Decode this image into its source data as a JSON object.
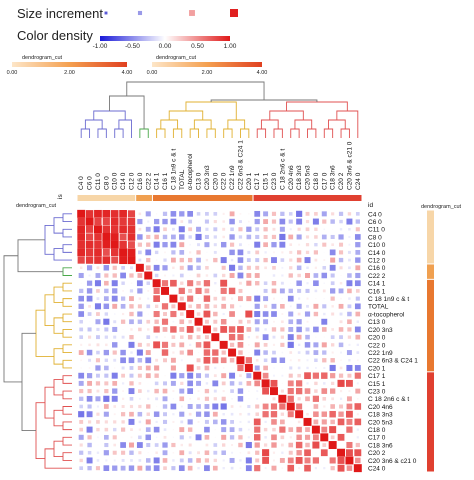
{
  "legend": {
    "size_title": "Size increment",
    "color_title": "Color density",
    "color_ticks": [
      "-1.00",
      "-0.50",
      "0.00",
      "0.50",
      "1.00"
    ],
    "size_levels": [
      0.15,
      0.35,
      0.65,
      1.0
    ],
    "size_colors": [
      "#5a5ad8",
      "#9a9ae8",
      "#f2a0a0",
      "#e02020"
    ],
    "dendro_title": "dendrogram_cut",
    "dendro_ticks_left": [
      "0.00",
      "2.00",
      "4.00"
    ],
    "dendro_ticks_right": [
      "0.00",
      "2.00",
      "4.00"
    ]
  },
  "axis": {
    "top_id_label": "is",
    "row_id_label": "id",
    "dendro_row_label": "dendrogram_cut",
    "dendro_col_label": "dendrogram_cut"
  },
  "chart_data": {
    "type": "heatmap",
    "value_range": [
      -1,
      1
    ],
    "variables": [
      "C4 0",
      "C6 0",
      "C11 0",
      "C8 0",
      "C10 0",
      "C14 0",
      "C12 0",
      "C16 0",
      "C22 2",
      "C14 1",
      "C16 1",
      "C 18 1n9 c & t",
      "TOTAL",
      "α-tocopherol",
      "C13 0",
      "C20 3n3",
      "C20 0",
      "C22 0",
      "C22 1n9",
      "C22 6n3 & C24 1",
      "C20 1",
      "C17 1",
      "C15 1",
      "C23 0",
      "C 18 2n6 c & t",
      "C20 4n6",
      "C18 3n3",
      "C20 5n3",
      "C18 0",
      "C17 0",
      "C18 3n6",
      "C20 2",
      "C20 3n6 & c21 0",
      "C24 0"
    ],
    "clusters": [
      {
        "name": "1",
        "color": "#f7d6a8",
        "members": [
          0,
          1,
          2,
          3,
          4,
          5,
          6
        ],
        "dendro_color": "#6b6bd0"
      },
      {
        "name": "2",
        "color": "#f0a050",
        "members": [
          7,
          8
        ],
        "dendro_color": "#4aa84a"
      },
      {
        "name": "3",
        "color": "#e87830",
        "members": [
          9,
          10,
          11,
          12,
          13,
          14,
          15,
          16,
          17,
          18,
          19,
          20
        ],
        "dendro_color": "#e0b030"
      },
      {
        "name": "4",
        "color": "#e04030",
        "members": [
          21,
          22,
          23,
          24,
          25,
          26,
          27,
          28,
          29,
          30,
          31,
          32,
          33
        ],
        "dendro_color": "#e05050"
      }
    ]
  }
}
